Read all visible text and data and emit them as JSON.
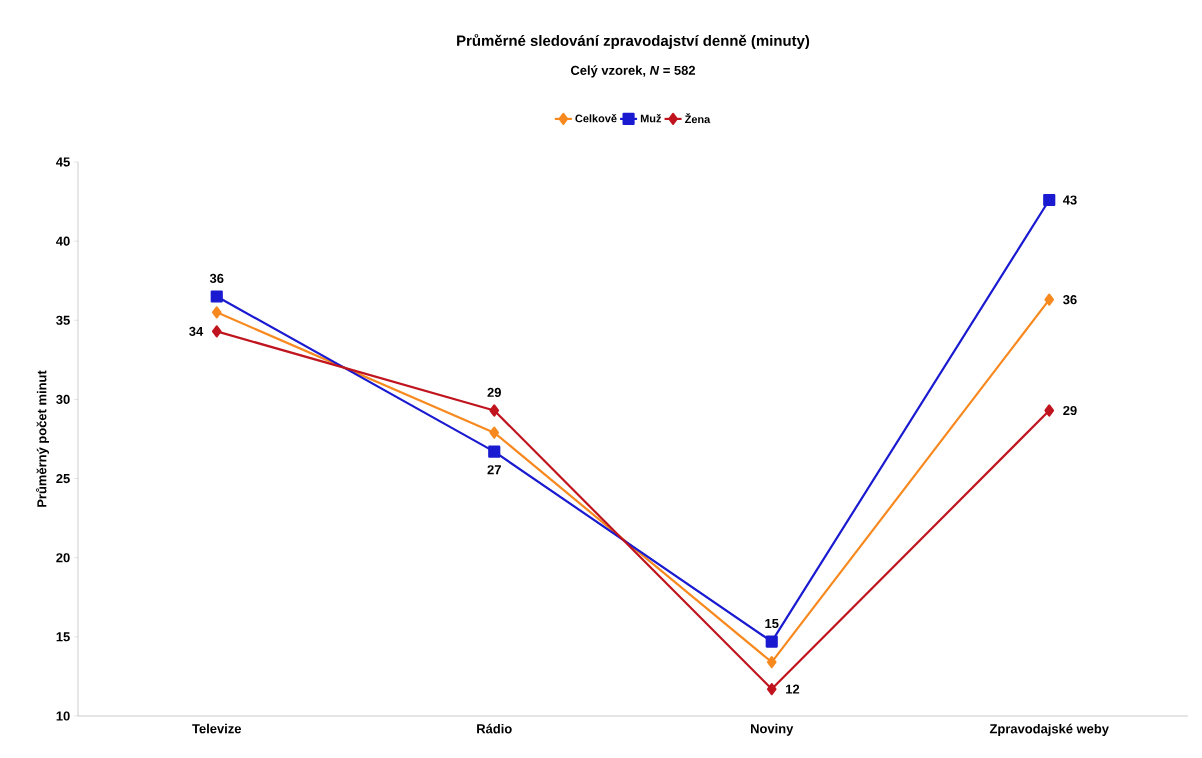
{
  "chart_data": {
    "type": "line",
    "title": "Průměrné sledování zpravodajství denně (minuty)",
    "subtitle": "Celý vzorek, *N* = 582",
    "ylabel": "Průměrný počet minut",
    "categories": [
      "Televize",
      "Rádio",
      "Noviny",
      "Zpravodajské weby"
    ],
    "series": [
      {
        "name": "Celkově",
        "color": "#f7891f",
        "marker": "diamond",
        "values": [
          35.5,
          27.9,
          13.4,
          36.3
        ],
        "value_labels": [
          null,
          null,
          null,
          "36"
        ]
      },
      {
        "name": "Muž",
        "color": "#1a1ad0",
        "marker": "square",
        "values": [
          36.5,
          26.7,
          14.7,
          42.6
        ],
        "value_labels": [
          "36",
          "27",
          "15",
          "43"
        ]
      },
      {
        "name": "Žena",
        "color": "#c0141e",
        "marker": "diamond",
        "values": [
          34.3,
          29.3,
          11.7,
          29.3
        ],
        "value_labels": [
          "34",
          "29",
          "12",
          "29"
        ]
      }
    ],
    "ylim": [
      10,
      45
    ],
    "yticks": [
      10,
      15,
      20,
      25,
      30,
      35,
      40,
      45
    ],
    "grid": false,
    "legend": "top",
    "line_style": "solid"
  }
}
